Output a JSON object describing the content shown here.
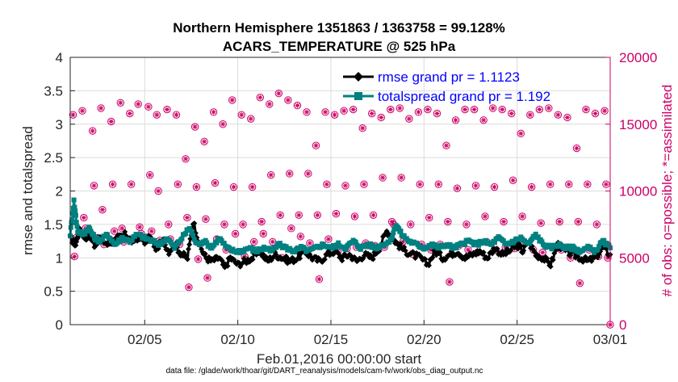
{
  "chart_data": {
    "type": "line",
    "title": "Northern Hemisphere 1351863 / 1363758 = 99.128%",
    "subtitle": "ACARS_TEMPERATURE @ 525 hPa",
    "xlabel": "Feb.01,2016 00:00:00 start",
    "ylabel_left": "rmse and totalspread",
    "ylabel_right": "# of obs: o=possible; *=assimilated",
    "footer": "data file: /glade/work/thoar/git/DART_reanalysis/models/cam-fv/work/obs_diag_output.nc",
    "xlim": [
      1,
      30
    ],
    "ylim_left": [
      0,
      4
    ],
    "ylim_right": [
      0,
      20000
    ],
    "x_ticks": [
      5,
      10,
      15,
      20,
      25,
      30
    ],
    "x_tick_labels": [
      "02/05",
      "02/10",
      "02/15",
      "02/20",
      "02/25",
      "03/01"
    ],
    "y_left_ticks": [
      0,
      0.5,
      1,
      1.5,
      2,
      2.5,
      3,
      3.5,
      4
    ],
    "y_left_tick_labels": [
      "0",
      "0.5",
      "1",
      "1.5",
      "2",
      "2.5",
      "3",
      "3.5",
      "4"
    ],
    "y_right_ticks": [
      0,
      5000,
      10000,
      15000,
      20000
    ],
    "y_right_tick_labels": [
      "0",
      "5000",
      "10000",
      "15000",
      "20000"
    ],
    "grid": true,
    "legend_position": "top-right",
    "colors": {
      "rmse": "#000000",
      "spread": "#008080",
      "obs": "#cc0066"
    },
    "series": [
      {
        "name": "rmse grand pr = 1.1123",
        "control_x": [
          1.0,
          1.3,
          1.5,
          1.8,
          2.0,
          2.3,
          2.6,
          3.0,
          3.3,
          3.6,
          4.0,
          4.3,
          4.6,
          5.0,
          5.3,
          5.6,
          6.0,
          6.3,
          6.6,
          7.0,
          7.3,
          7.6,
          8.0,
          8.3,
          8.6,
          9.0,
          9.3,
          9.6,
          10.0,
          10.4,
          10.8,
          11.2,
          11.6,
          12.0,
          12.4,
          12.8,
          13.2,
          13.6,
          14.0,
          14.4,
          14.8,
          15.2,
          15.6,
          16.0,
          16.4,
          16.8,
          17.2,
          17.6,
          18.0,
          18.3,
          18.6,
          19.0,
          19.4,
          19.8,
          20.2,
          20.6,
          21.0,
          21.4,
          21.8,
          22.2,
          22.6,
          23.0,
          23.4,
          23.8,
          24.2,
          24.6,
          25.0,
          25.3,
          25.6,
          26.0,
          26.4,
          26.8,
          27.2,
          27.6,
          28.0,
          28.4,
          28.8,
          29.2,
          29.6,
          30.0
        ],
        "control_y": [
          1.3,
          1.2,
          1.45,
          1.3,
          1.35,
          1.2,
          1.3,
          1.2,
          1.25,
          1.3,
          1.35,
          1.25,
          1.3,
          1.25,
          1.3,
          1.15,
          1.25,
          1.1,
          1.2,
          1.05,
          1.0,
          1.55,
          1.15,
          1.0,
          0.95,
          1.0,
          0.85,
          1.0,
          0.9,
          0.95,
          1.0,
          1.1,
          0.95,
          1.05,
          1.0,
          0.95,
          1.0,
          1.1,
          1.0,
          0.95,
          1.05,
          1.1,
          1.0,
          1.05,
          0.95,
          1.05,
          1.0,
          1.15,
          1.4,
          1.3,
          1.2,
          1.1,
          1.05,
          1.0,
          0.9,
          1.1,
          1.0,
          1.05,
          1.1,
          1.0,
          1.05,
          1.1,
          1.0,
          1.15,
          1.05,
          1.1,
          1.2,
          1.1,
          1.25,
          1.05,
          1.0,
          0.9,
          1.2,
          1.1,
          1.05,
          1.0,
          0.95,
          1.0,
          1.15,
          1.05
        ],
        "jitter": 0.05,
        "marker": "diamond"
      },
      {
        "name": "totalspread grand pr = 1.192",
        "control_x": [
          1.0,
          1.2,
          1.4,
          1.7,
          2.0,
          2.3,
          2.6,
          3.0,
          3.4,
          3.8,
          4.2,
          4.6,
          5.0,
          5.4,
          5.8,
          6.2,
          6.6,
          7.0,
          7.4,
          7.8,
          8.2,
          8.6,
          9.0,
          9.4,
          9.8,
          10.2,
          10.6,
          11.0,
          11.4,
          11.8,
          12.2,
          12.6,
          13.0,
          13.4,
          13.8,
          14.2,
          14.6,
          15.0,
          15.4,
          15.8,
          16.2,
          16.6,
          17.0,
          17.4,
          17.8,
          18.2,
          18.5,
          18.8,
          19.2,
          19.6,
          20.0,
          20.4,
          20.8,
          21.2,
          21.6,
          22.0,
          22.4,
          22.8,
          23.2,
          23.6,
          24.0,
          24.4,
          24.8,
          25.2,
          25.6,
          26.0,
          26.4,
          26.8,
          27.2,
          27.6,
          28.0,
          28.4,
          28.8,
          29.2,
          29.6,
          30.0
        ],
        "control_y": [
          1.35,
          1.85,
          1.4,
          1.35,
          1.45,
          1.3,
          1.25,
          1.35,
          1.2,
          1.3,
          1.25,
          1.35,
          1.3,
          1.25,
          1.2,
          1.3,
          1.15,
          1.3,
          1.45,
          1.2,
          1.25,
          1.15,
          1.3,
          1.15,
          1.1,
          1.1,
          1.15,
          1.1,
          1.15,
          1.1,
          1.2,
          1.15,
          1.1,
          1.15,
          1.1,
          1.15,
          1.2,
          1.15,
          1.2,
          1.15,
          1.25,
          1.15,
          1.2,
          1.15,
          1.2,
          1.25,
          1.5,
          1.35,
          1.25,
          1.2,
          1.15,
          1.2,
          1.15,
          1.2,
          1.15,
          1.2,
          1.25,
          1.2,
          1.25,
          1.2,
          1.3,
          1.2,
          1.25,
          1.3,
          1.2,
          1.35,
          1.2,
          1.15,
          1.2,
          1.15,
          1.15,
          1.1,
          1.15,
          1.1,
          1.25,
          1.15
        ],
        "jitter": 0.03,
        "marker": "square"
      }
    ],
    "obs_possible": {
      "x": [
        1.15,
        1.65,
        2.2,
        2.65,
        3.2,
        3.7,
        4.2,
        4.65,
        5.2,
        5.65,
        6.2,
        6.7,
        7.2,
        7.7,
        8.2,
        8.7,
        9.2,
        9.7,
        10.2,
        10.7,
        11.2,
        11.7,
        12.2,
        12.7,
        13.2,
        13.7,
        14.2,
        14.7,
        15.2,
        15.7,
        16.2,
        16.7,
        17.2,
        17.7,
        18.2,
        18.7,
        19.2,
        19.7,
        20.2,
        20.7,
        21.2,
        21.7,
        22.2,
        22.7,
        23.2,
        23.7,
        24.2,
        24.7,
        25.2,
        25.7,
        26.2,
        26.7,
        27.2,
        27.7,
        28.2,
        28.7,
        29.2,
        29.7
      ],
      "high": [
        15700,
        16000,
        14500,
        16200,
        15200,
        16600,
        15800,
        16500,
        16300,
        15700,
        16100,
        15700,
        12400,
        14800,
        13700,
        15900,
        15000,
        16800,
        15700,
        15400,
        17000,
        16500,
        17300,
        16800,
        16400,
        15900,
        13400,
        15900,
        15700,
        16000,
        16100,
        14700,
        15800,
        15500,
        16100,
        16200,
        15400,
        15900,
        16100,
        15800,
        13400,
        15300,
        16100,
        16100,
        15300,
        16200,
        16100,
        15800,
        14300,
        15700,
        16100,
        16200,
        15700,
        15500,
        13200,
        16100,
        15800,
        16000
      ],
      "mid": [
        5100,
        8000,
        10400,
        8600,
        10500,
        7200,
        10500,
        7300,
        11200,
        10000,
        7500,
        10500,
        8000,
        10300,
        7900,
        10600,
        7500,
        10300,
        7500,
        10300,
        7700,
        11200,
        8200,
        11300,
        8200,
        11300,
        8200,
        10500,
        8300,
        10400,
        8100,
        10500,
        8200,
        11000,
        7700,
        11000,
        7500,
        10500,
        8000,
        10500,
        7700,
        10200,
        7500,
        10400,
        8100,
        10300,
        7700,
        10800,
        8100,
        10300,
        7600,
        10500,
        7700,
        10500,
        7700,
        10500,
        7500,
        10500
      ],
      "low": [
        6500,
        7200,
        6500,
        6000,
        7000,
        6200,
        6300,
        6800,
        7000,
        6300,
        6400,
        6000,
        2800,
        4900,
        3500,
        6400,
        5600,
        6800,
        5100,
        6200,
        6800,
        6200,
        5000,
        7200,
        6600,
        6100,
        3400,
        6400,
        5500,
        5700,
        5800,
        6100,
        5900,
        5800,
        7500,
        6200,
        5300,
        6000,
        5600,
        6000,
        3200,
        5900,
        5600,
        5400,
        6200,
        5600,
        5800,
        5700,
        6200,
        5600,
        5400,
        5800,
        5600,
        5000,
        3100,
        5600,
        5100,
        5000
      ]
    },
    "obs_extra": {
      "x": [
        30.0
      ],
      "y": [
        0
      ]
    }
  }
}
